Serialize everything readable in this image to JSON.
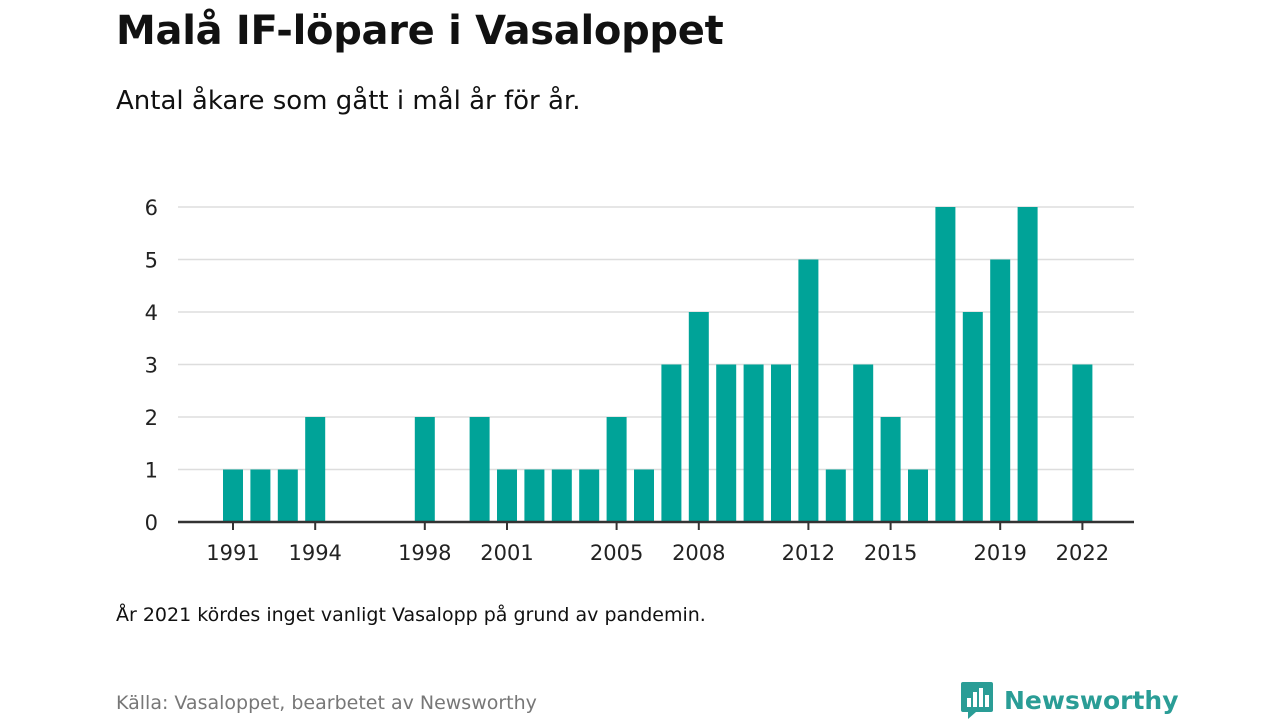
{
  "header": {
    "title": "Malå IF-löpare i Vasaloppet",
    "subtitle": "Antal åkare som gått i mål år för år."
  },
  "footer": {
    "note": "År 2021 kördes inget vanligt Vasalopp på grund av pandemin.",
    "source": "Källa: Vasaloppet, bearbetet av Newsworthy",
    "brand": "Newsworthy"
  },
  "colors": {
    "bar": "#00a398",
    "brand": "#2a9d96",
    "gridline": "#dddddd",
    "axis": "#333333"
  },
  "icons": {
    "brand_logo": "newsworthy-bar-chart-logo-icon"
  },
  "chart_data": {
    "type": "bar",
    "x": [
      1991,
      1992,
      1993,
      1994,
      1995,
      1996,
      1997,
      1998,
      1999,
      2000,
      2001,
      2002,
      2003,
      2004,
      2005,
      2006,
      2007,
      2008,
      2009,
      2010,
      2011,
      2012,
      2013,
      2014,
      2015,
      2016,
      2017,
      2018,
      2019,
      2020,
      2021,
      2022
    ],
    "values": [
      1,
      1,
      1,
      2,
      0,
      0,
      0,
      2,
      0,
      2,
      1,
      1,
      1,
      1,
      2,
      1,
      3,
      4,
      3,
      3,
      3,
      5,
      1,
      3,
      2,
      1,
      6,
      4,
      5,
      6,
      0,
      3
    ],
    "x_tick_labels": [
      "1991",
      "1994",
      "1998",
      "2001",
      "2005",
      "2008",
      "2012",
      "2015",
      "2019",
      "2022"
    ],
    "y_tick_labels": [
      "0",
      "1",
      "2",
      "3",
      "4",
      "5",
      "6"
    ],
    "ylim": [
      0,
      6
    ],
    "grid": true,
    "legend": "none"
  }
}
